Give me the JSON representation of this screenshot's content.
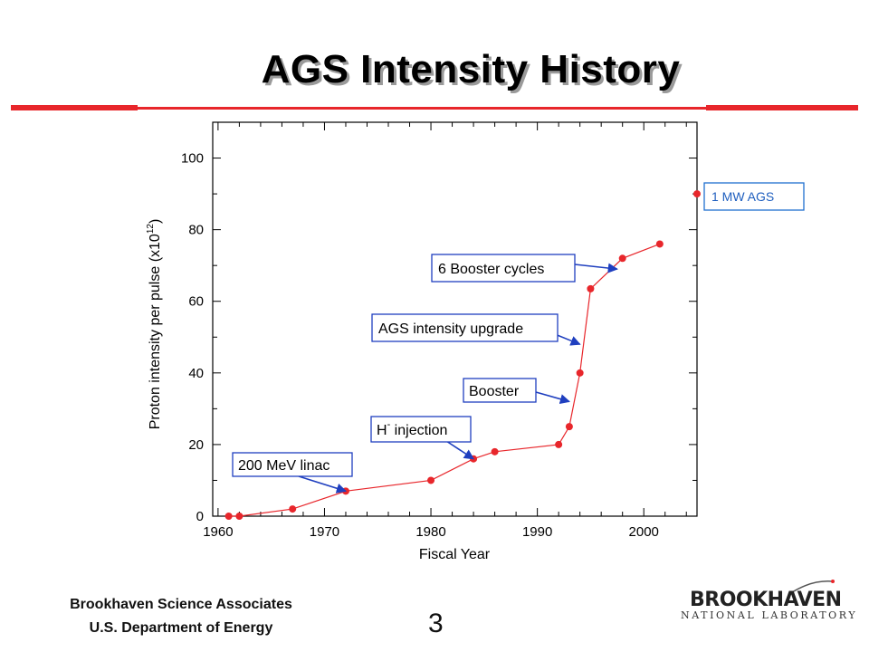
{
  "slide": {
    "title": "AGS Intensity History",
    "footer_line1": "Brookhaven Science Associates",
    "footer_line2": "U.S. Department of Energy",
    "page_number": "3",
    "logo_top": "BROOKHAVEN",
    "logo_bottom": "NATIONAL LABORATORY",
    "accent_color": "#e8262b"
  },
  "chart_data": {
    "type": "line",
    "xlabel": "Fiscal Year",
    "ylabel": "Proton intensity per pulse (x10",
    "ylabel_superscript": "12",
    "ylabel_suffix": ")",
    "xlim": [
      1959.5,
      2005
    ],
    "ylim": [
      0,
      110
    ],
    "x_ticks": [
      1960,
      1970,
      1980,
      1990,
      2000
    ],
    "y_ticks": [
      0,
      20,
      40,
      60,
      80,
      100
    ],
    "grid": false,
    "series": [
      {
        "color": "#e8262b",
        "x": [
          1961,
          1962,
          1967,
          1972,
          1980,
          1984,
          1986,
          1992,
          1993,
          1994,
          1995,
          1998,
          2001.5
        ],
        "y": [
          0,
          0,
          2,
          7,
          10,
          16,
          18,
          20,
          25,
          40,
          63.5,
          72,
          76
        ]
      }
    ],
    "extra_point": {
      "x": 2005,
      "y": 90,
      "label": "1 MW AGS"
    },
    "annotations": [
      {
        "text": "200 MeV linac",
        "arrow_to": [
          1972,
          7
        ]
      },
      {
        "text": "H",
        "superscript": "-",
        "text_suffix": " injection",
        "arrow_to": [
          1984,
          16
        ]
      },
      {
        "text": "Booster",
        "arrow_to": [
          1993,
          32
        ]
      },
      {
        "text": "AGS intensity upgrade",
        "arrow_to": [
          1994,
          48
        ]
      },
      {
        "text": "6 Booster cycles",
        "arrow_to": [
          1997.5,
          69
        ]
      }
    ]
  }
}
